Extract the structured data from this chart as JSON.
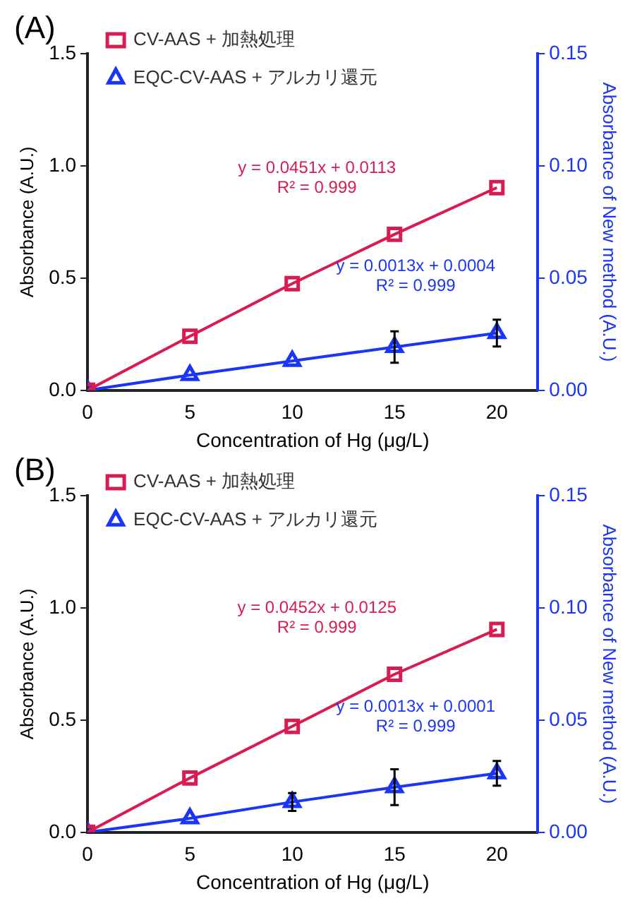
{
  "chart_data": [
    {
      "type": "line",
      "title": "(A)",
      "x": [
        0,
        5,
        10,
        15,
        20
      ],
      "xlabel": "Concentration of Hg (μg/L)",
      "ylabel": "Absorbance (A.U.)",
      "y2label": "Absorbance of New method (A.U.)",
      "xlim": [
        0,
        22
      ],
      "xticks": [
        0,
        5,
        10,
        15,
        20
      ],
      "ylim": [
        0,
        1.5
      ],
      "yticks": [
        {
          "value": 0,
          "label": "0.0"
        },
        {
          "value": 0.5,
          "label": "0.5"
        },
        {
          "value": 1,
          "label": "1.0"
        },
        {
          "value": 1.5,
          "label": "1.5"
        }
      ],
      "y2lim": [
        0,
        0.15
      ],
      "y2ticks": [
        {
          "value": 0,
          "label": "0.00"
        },
        {
          "value": 0.05,
          "label": "0.05"
        },
        {
          "value": 0.1,
          "label": "0.10"
        },
        {
          "value": 0.15,
          "label": "0.15"
        }
      ],
      "grid": false,
      "legend": "top left",
      "line_style": "solid",
      "series": [
        {
          "name": "CV-AAS + 加熱処理",
          "color": "#d81b50",
          "marker": "square",
          "values": [
            0,
            0.241,
            0.475,
            0.695,
            0.903
          ]
        },
        {
          "name": "EQC-CV-AAS + アルカリ還元",
          "color": "#1a35f5",
          "marker": "triangle",
          "axis": "y2",
          "values": [
            0,
            0.0068,
            0.0131,
            0.0193,
            0.0255
          ],
          "errors": [
            null,
            null,
            null,
            0.007,
            0.006
          ]
        }
      ],
      "annotations": [
        "y = 0.0451x + 0.0113\nR² = 0.999",
        "y = 0.0013x + 0.0004\nR² = 0.999"
      ]
    },
    {
      "type": "line",
      "title": "(B)",
      "x": [
        0,
        5,
        10,
        15,
        20
      ],
      "xlabel": "Concentration of Hg (μg/L)",
      "ylabel": "Absorbance (A.U.)",
      "y2label": "Absorbance of New method (A.U.)",
      "xlim": [
        0,
        22
      ],
      "xticks": [
        0,
        5,
        10,
        15,
        20
      ],
      "ylim": [
        0,
        1.5
      ],
      "yticks": [
        {
          "value": 0,
          "label": "0.0"
        },
        {
          "value": 0.5,
          "label": "0.5"
        },
        {
          "value": 1,
          "label": "1.0"
        },
        {
          "value": 1.5,
          "label": "1.5"
        }
      ],
      "y2lim": [
        0,
        0.15
      ],
      "y2ticks": [
        {
          "value": 0,
          "label": "0.00"
        },
        {
          "value": 0.05,
          "label": "0.05"
        },
        {
          "value": 0.1,
          "label": "0.10"
        },
        {
          "value": 0.15,
          "label": "0.15"
        }
      ],
      "grid": false,
      "legend": "top left",
      "line_style": "solid",
      "series": [
        {
          "name": "CV-AAS + 加熱処理",
          "color": "#d81b50",
          "marker": "square",
          "values": [
            0,
            0.242,
            0.472,
            0.704,
            0.904
          ]
        },
        {
          "name": "EQC-CV-AAS + アルカリ還元",
          "color": "#1a35f5",
          "marker": "triangle",
          "axis": "y2",
          "values": [
            0,
            0.0062,
            0.0135,
            0.0201,
            0.0263
          ],
          "errors": [
            null,
            null,
            0.004,
            0.008,
            0.0055
          ]
        }
      ],
      "annotations": [
        "y = 0.0452x + 0.0125\nR² = 0.999",
        "y = 0.0013x + 0.0001\nR² = 0.999"
      ]
    }
  ]
}
